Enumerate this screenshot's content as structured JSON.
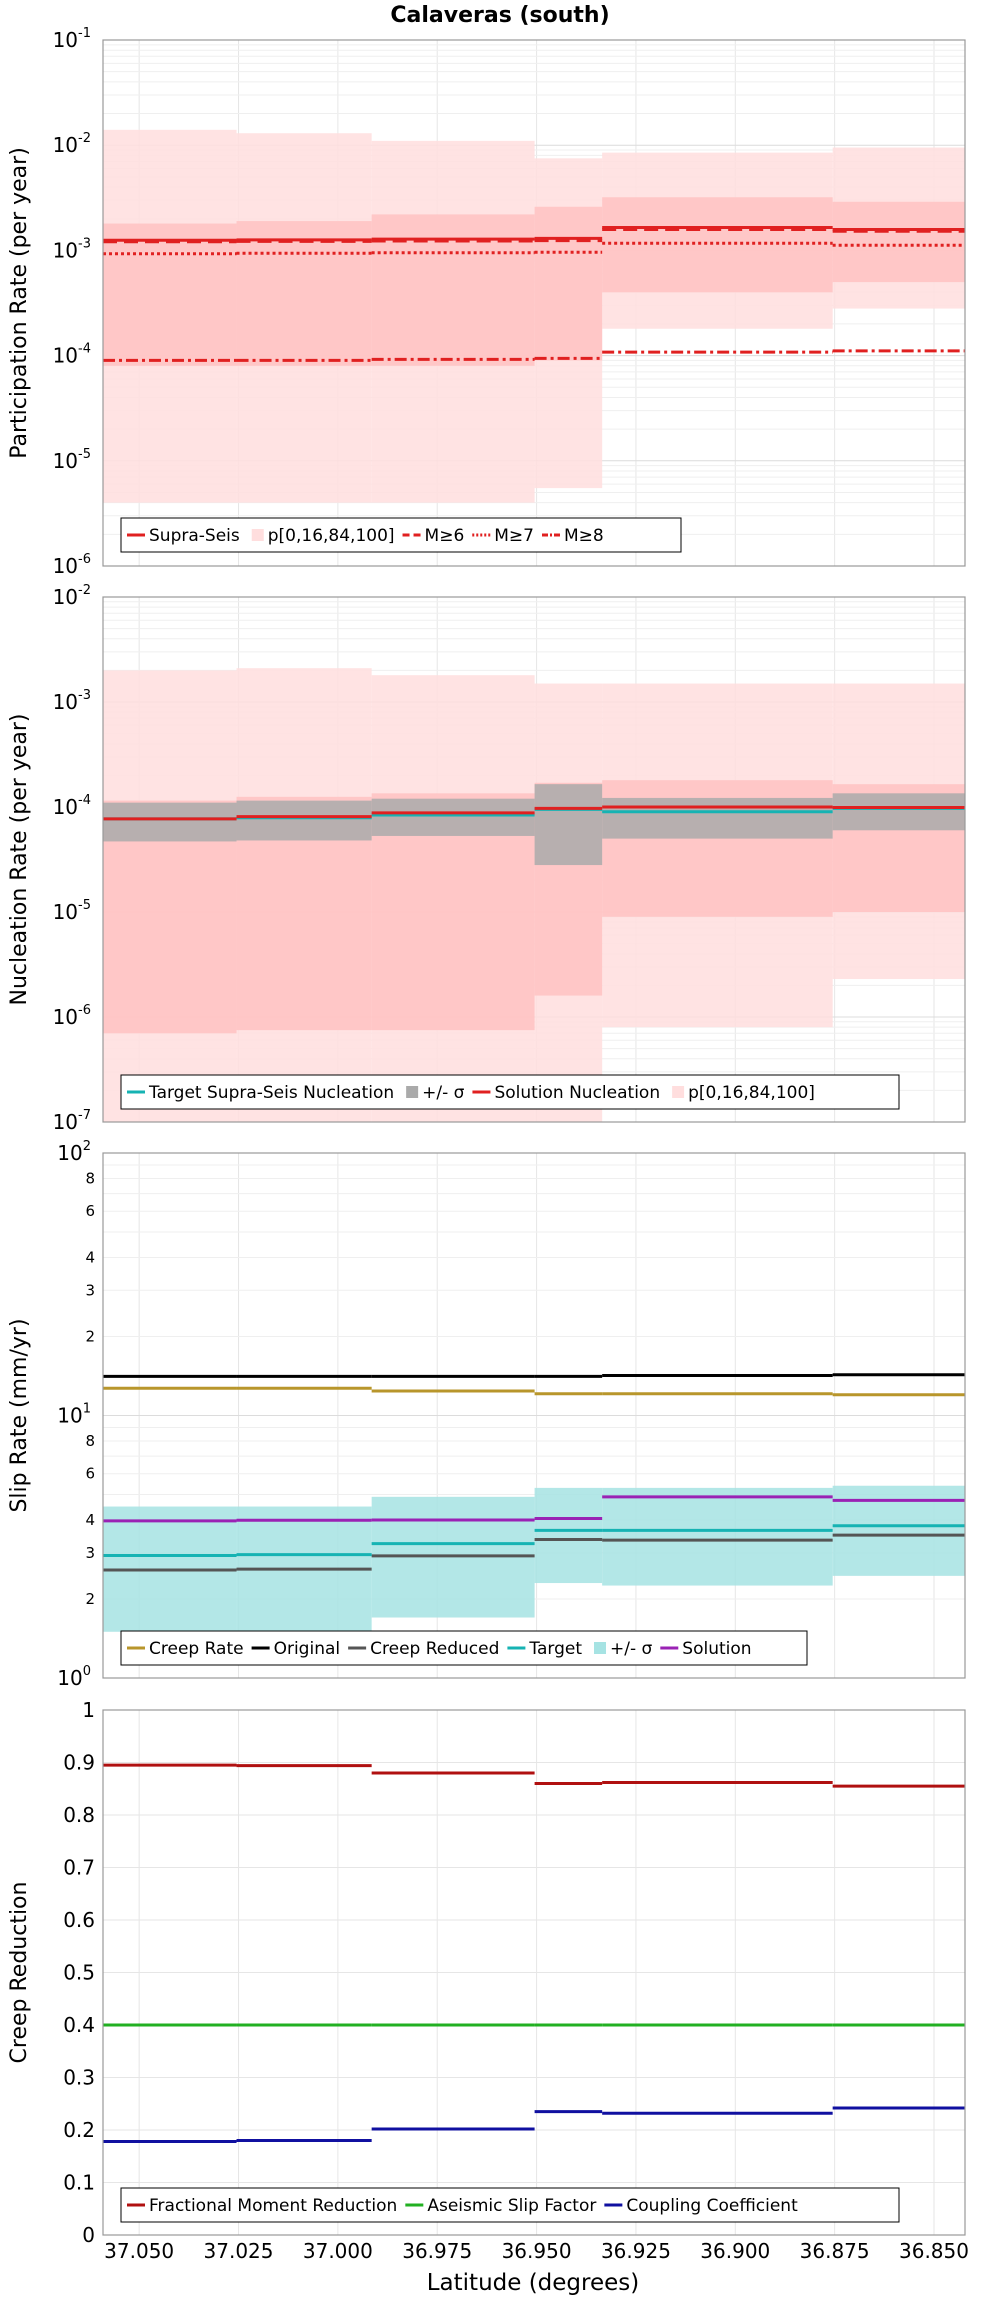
{
  "title": "Calaveras (south)",
  "xlabel": "Latitude (degrees)",
  "x_ticks": [
    37.05,
    37.025,
    37.0,
    36.975,
    36.95,
    36.925,
    36.9,
    36.875,
    36.85
  ],
  "x_tick_labels": [
    "37.050",
    "37.025",
    "37.000",
    "36.975",
    "36.950",
    "36.925",
    "36.900",
    "36.875",
    "36.850"
  ],
  "x_range": [
    37.0591,
    36.8422
  ],
  "segments": [
    [
      37.0591,
      37.0255
    ],
    [
      37.0255,
      36.9915
    ],
    [
      36.9915,
      36.9505
    ],
    [
      36.9505,
      36.9335
    ],
    [
      36.9335,
      36.8755
    ],
    [
      36.8755,
      36.8422
    ]
  ],
  "colors": {
    "red": "#e02020",
    "red_dark": "#b01010",
    "pink_light": "#ffdede",
    "pink_mid": "#ffc2c2",
    "gray_band": "#aaaaaa",
    "teal": "#16b3b3",
    "teal_band": "#a6e3e3",
    "gold": "#b8962b",
    "black": "#000000",
    "dark_gray": "#555555",
    "purple": "#9a22b4",
    "green": "#22b022",
    "blue": "#1010a0",
    "grid": "#e6e6e6",
    "axis": "#999999"
  },
  "chart_data": [
    {
      "type": "line",
      "name": "participation",
      "ylabel": "Participation Rate (per year)",
      "yscale": "log",
      "ylim": [
        1e-06,
        0.1
      ],
      "y_tick_exponents": [
        -6,
        -5,
        -4,
        -3,
        -2,
        -1
      ],
      "series": [
        {
          "name": "p[0,16,84,100] outer",
          "kind": "band",
          "color_key": "pink_light",
          "lower": [
            4e-06,
            4e-06,
            4e-06,
            5.5e-06,
            0.00018,
            0.00028
          ],
          "upper": [
            0.014,
            0.013,
            0.011,
            0.0075,
            0.0085,
            0.0095
          ]
        },
        {
          "name": "p[0,16,84,100] inner",
          "kind": "band",
          "color_key": "pink_mid",
          "lower": [
            8e-05,
            8e-05,
            8e-05,
            9e-05,
            0.0004,
            0.0005
          ],
          "upper": [
            0.0018,
            0.0019,
            0.0022,
            0.0026,
            0.0032,
            0.0029
          ]
        },
        {
          "name": "Supra-Seis",
          "kind": "step",
          "style": "solid",
          "color_key": "red",
          "values": [
            0.00125,
            0.00126,
            0.00128,
            0.0013,
            0.00165,
            0.00158
          ]
        },
        {
          "name": "M≥6",
          "kind": "step",
          "style": "dashed",
          "color_key": "red",
          "values": [
            0.00121,
            0.00122,
            0.00123,
            0.00124,
            0.00158,
            0.00152
          ]
        },
        {
          "name": "M≥7",
          "kind": "step",
          "style": "dotted",
          "color_key": "red",
          "values": [
            0.00093,
            0.00094,
            0.00095,
            0.00096,
            0.00117,
            0.00112
          ]
        },
        {
          "name": "M≥8",
          "kind": "step",
          "style": "dashdot",
          "color_key": "red",
          "values": [
            9e-05,
            9e-05,
            9.2e-05,
            9.4e-05,
            0.000108,
            0.000111
          ]
        }
      ],
      "legend": [
        {
          "label": "Supra-Seis",
          "swatch": "line-solid",
          "color_key": "red"
        },
        {
          "label": "p[0,16,84,100]",
          "swatch": "box",
          "color_key": "pink_light"
        },
        {
          "label": "M≥6",
          "swatch": "line-dashed",
          "color_key": "red"
        },
        {
          "label": "M≥7",
          "swatch": "line-dotted",
          "color_key": "red"
        },
        {
          "label": "M≥8",
          "swatch": "line-dashdot",
          "color_key": "red"
        }
      ]
    },
    {
      "type": "line",
      "name": "nucleation",
      "ylabel": "Nucleation Rate (per year)",
      "yscale": "log",
      "ylim": [
        1e-07,
        0.01
      ],
      "y_tick_exponents": [
        -7,
        -6,
        -5,
        -4,
        -3,
        -2
      ],
      "series": [
        {
          "name": "p[0,16,84,100] outer",
          "kind": "band",
          "color_key": "pink_light",
          "lower": [
            1e-07,
            1e-07,
            1e-07,
            1e-07,
            8e-07,
            2.3e-06
          ],
          "upper": [
            0.002,
            0.0021,
            0.0018,
            0.0015,
            0.0015,
            0.0015
          ]
        },
        {
          "name": "p[0,16,84,100] inner",
          "kind": "band",
          "color_key": "pink_mid",
          "lower": [
            7e-07,
            7.5e-07,
            7.5e-07,
            1.6e-06,
            9e-06,
            1e-05
          ],
          "upper": [
            0.000115,
            0.000125,
            0.000135,
            0.00017,
            0.00018,
            0.000165
          ]
        },
        {
          "name": "+/- σ",
          "kind": "band",
          "color_key": "gray_band",
          "lower": [
            4.7e-05,
            4.8e-05,
            5.3e-05,
            2.8e-05,
            5e-05,
            6e-05
          ],
          "upper": [
            0.00011,
            0.000115,
            0.00012,
            0.000165,
            0.000122,
            0.000135
          ]
        },
        {
          "name": "Target Supra-Seis Nucleation",
          "kind": "step",
          "style": "solid",
          "color_key": "teal",
          "values": [
            7.7e-05,
            7.9e-05,
            8.4e-05,
            9.5e-05,
            9e-05,
            9.7e-05
          ]
        },
        {
          "name": "Solution Nucleation",
          "kind": "step",
          "style": "solid",
          "color_key": "red",
          "values": [
            7.7e-05,
            8.1e-05,
            8.8e-05,
            9.7e-05,
            0.0001,
            9.9e-05
          ]
        }
      ],
      "legend": [
        {
          "label": "Target Supra-Seis Nucleation",
          "swatch": "line-solid",
          "color_key": "teal"
        },
        {
          "label": "+/- σ",
          "swatch": "box",
          "color_key": "gray_band"
        },
        {
          "label": "Solution Nucleation",
          "swatch": "line-solid",
          "color_key": "red"
        },
        {
          "label": "p[0,16,84,100]",
          "swatch": "box",
          "color_key": "pink_light"
        }
      ]
    },
    {
      "type": "line",
      "name": "slip",
      "ylabel": "Slip Rate (mm/yr)",
      "yscale": "log",
      "ylim": [
        1,
        100
      ],
      "y_tick_exponents": [
        0,
        1,
        2
      ],
      "minor_ticks": [
        2,
        3,
        4,
        6,
        8,
        20,
        30,
        40,
        60,
        80
      ],
      "minor_tick_labels": [
        "2",
        "3",
        "4",
        "6",
        "8",
        "2",
        "3",
        "4",
        "6",
        "8"
      ],
      "series": [
        {
          "name": "+/- σ",
          "kind": "band",
          "color_key": "teal_band",
          "lower": [
            1.5,
            1.5,
            1.7,
            2.3,
            2.25,
            2.45
          ],
          "upper": [
            4.5,
            4.5,
            4.9,
            5.3,
            5.3,
            5.4
          ]
        },
        {
          "name": "Creep Rate",
          "kind": "step",
          "style": "solid",
          "color_key": "gold",
          "values": [
            12.7,
            12.7,
            12.4,
            12.1,
            12.1,
            12.0
          ]
        },
        {
          "name": "Original",
          "kind": "step",
          "style": "solid",
          "color_key": "black",
          "values": [
            14.1,
            14.1,
            14.1,
            14.1,
            14.2,
            14.3
          ]
        },
        {
          "name": "Creep Reduced",
          "kind": "step",
          "style": "solid",
          "color_key": "dark_gray",
          "values": [
            2.58,
            2.6,
            2.92,
            3.37,
            3.35,
            3.5
          ]
        },
        {
          "name": "Target",
          "kind": "step",
          "style": "solid",
          "color_key": "teal",
          "values": [
            2.93,
            2.95,
            3.25,
            3.65,
            3.65,
            3.8
          ]
        },
        {
          "name": "Solution",
          "kind": "step",
          "style": "solid",
          "color_key": "purple",
          "values": [
            3.97,
            3.99,
            4.0,
            4.05,
            4.9,
            4.75
          ]
        }
      ],
      "legend": [
        {
          "label": "Creep Rate",
          "swatch": "line-solid",
          "color_key": "gold"
        },
        {
          "label": "Original",
          "swatch": "line-solid",
          "color_key": "black"
        },
        {
          "label": "Creep Reduced",
          "swatch": "line-solid",
          "color_key": "dark_gray"
        },
        {
          "label": "Target",
          "swatch": "line-solid",
          "color_key": "teal"
        },
        {
          "label": "+/- σ",
          "swatch": "box",
          "color_key": "teal_band"
        },
        {
          "label": "Solution",
          "swatch": "line-solid",
          "color_key": "purple"
        }
      ]
    },
    {
      "type": "line",
      "name": "creep",
      "ylabel": "Creep Reduction",
      "yscale": "linear",
      "ylim": [
        0,
        1
      ],
      "y_ticks": [
        0,
        0.1,
        0.2,
        0.3,
        0.4,
        0.5,
        0.6,
        0.7,
        0.8,
        0.9,
        1
      ],
      "y_tick_labels": [
        "0",
        "0.1",
        "0.2",
        "0.3",
        "0.4",
        "0.5",
        "0.6",
        "0.7",
        "0.8",
        "0.9",
        "1"
      ],
      "series": [
        {
          "name": "Fractional Moment Reduction",
          "kind": "step",
          "style": "solid",
          "color_key": "red_dark",
          "values": [
            0.895,
            0.894,
            0.88,
            0.86,
            0.862,
            0.855
          ]
        },
        {
          "name": "Aseismic Slip Factor",
          "kind": "step",
          "style": "solid",
          "color_key": "green",
          "values": [
            0.4,
            0.4,
            0.4,
            0.4,
            0.4,
            0.4
          ]
        },
        {
          "name": "Coupling Coefficient",
          "kind": "step",
          "style": "solid",
          "color_key": "blue",
          "values": [
            0.178,
            0.18,
            0.202,
            0.235,
            0.232,
            0.242
          ]
        }
      ],
      "legend": [
        {
          "label": "Fractional Moment Reduction",
          "swatch": "line-solid",
          "color_key": "red_dark"
        },
        {
          "label": "Aseismic Slip Factor",
          "swatch": "line-solid",
          "color_key": "green"
        },
        {
          "label": "Coupling Coefficient",
          "swatch": "line-solid",
          "color_key": "blue"
        }
      ]
    }
  ]
}
